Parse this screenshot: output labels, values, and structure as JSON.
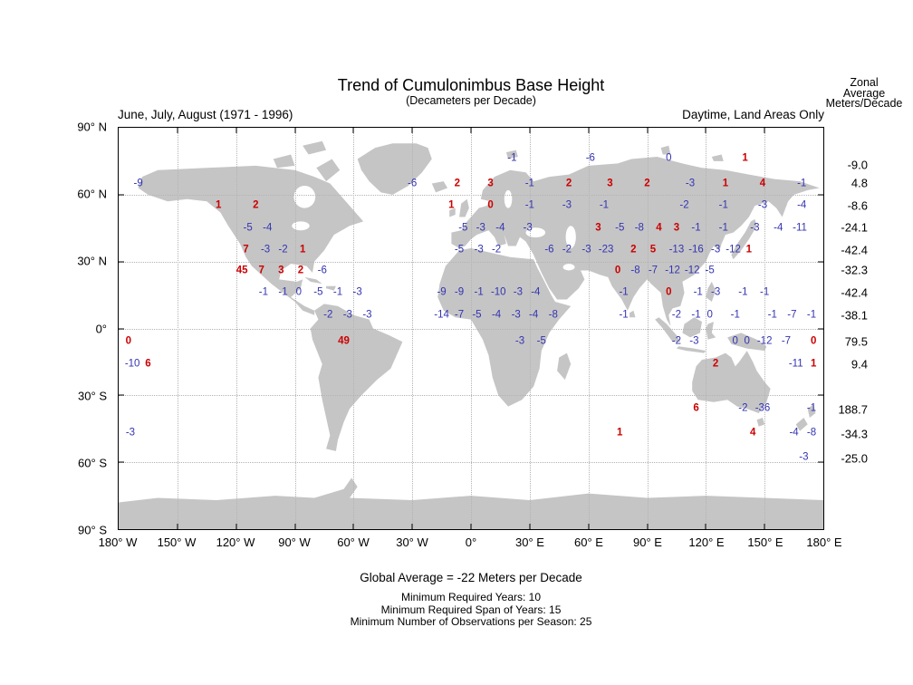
{
  "title": "Trend of Cumulonimbus Base Height",
  "subtitle": "(Decameters per Decade)",
  "left_caption": "June, July, August (1971 - 1996)",
  "right_caption": "Daytime, Land Areas Only",
  "zonal_header": [
    "Zonal",
    "Average",
    "Meters/Decade"
  ],
  "footer": {
    "global_average": "Global Average = -22 Meters per Decade",
    "notes": [
      "Minimum Required Years: 10",
      "Minimum Required Span of Years: 15",
      "Minimum Number of Observations per Season: 25"
    ]
  },
  "colors": {
    "positive": "#cc0000",
    "negative": "#3333b3",
    "land": "#c5c5c5",
    "grid": "#b3b3b3"
  },
  "axes": {
    "x_ticks": [
      {
        "lon": -180,
        "label": "180° W"
      },
      {
        "lon": -150,
        "label": "150° W"
      },
      {
        "lon": -120,
        "label": "120° W"
      },
      {
        "lon": -90,
        "label": "90° W"
      },
      {
        "lon": -60,
        "label": "60° W"
      },
      {
        "lon": -30,
        "label": "30° W"
      },
      {
        "lon": 0,
        "label": "0°"
      },
      {
        "lon": 30,
        "label": "30° E"
      },
      {
        "lon": 60,
        "label": "60° E"
      },
      {
        "lon": 90,
        "label": "90° E"
      },
      {
        "lon": 120,
        "label": "120° E"
      },
      {
        "lon": 150,
        "label": "150° E"
      },
      {
        "lon": 180,
        "label": "180° E"
      }
    ],
    "y_ticks": [
      {
        "lat": 90,
        "label": "90° N"
      },
      {
        "lat": 60,
        "label": "60° N"
      },
      {
        "lat": 30,
        "label": "30° N"
      },
      {
        "lat": 0,
        "label": "0°"
      },
      {
        "lat": -30,
        "label": "30° S"
      },
      {
        "lat": -60,
        "label": "60° S"
      },
      {
        "lat": -90,
        "label": "90° S"
      }
    ]
  },
  "chart_data": {
    "type": "scatter",
    "projection": "equirectangular",
    "title": "Trend of Cumulonimbus Base Height (Decameters per Decade)",
    "xlabel": "longitude",
    "ylabel": "latitude",
    "xlim": [
      -180,
      180
    ],
    "ylim": [
      -90,
      90
    ],
    "grid": true,
    "value_units": "decameters per decade",
    "positive_color_meaning": "positive trend (red)",
    "negative_color_meaning": "negative trend (blue)",
    "points": [
      {
        "lon": 21,
        "lat": 76,
        "v": "-1"
      },
      {
        "lon": 61,
        "lat": 76,
        "v": "-6"
      },
      {
        "lon": 101,
        "lat": 76,
        "v": "0",
        "c": "b"
      },
      {
        "lon": 140,
        "lat": 76,
        "v": "1"
      },
      {
        "lon": -170,
        "lat": 65,
        "v": "-9"
      },
      {
        "lon": -30,
        "lat": 65,
        "v": "-6"
      },
      {
        "lon": -7,
        "lat": 65,
        "v": "2"
      },
      {
        "lon": 10,
        "lat": 65,
        "v": "3"
      },
      {
        "lon": 30,
        "lat": 65,
        "v": "-1"
      },
      {
        "lon": 50,
        "lat": 65,
        "v": "2"
      },
      {
        "lon": 71,
        "lat": 65,
        "v": "3"
      },
      {
        "lon": 90,
        "lat": 65,
        "v": "2"
      },
      {
        "lon": 112,
        "lat": 65,
        "v": "-3"
      },
      {
        "lon": 130,
        "lat": 65,
        "v": "1"
      },
      {
        "lon": 149,
        "lat": 65,
        "v": "4"
      },
      {
        "lon": 169,
        "lat": 65,
        "v": "-1"
      },
      {
        "lon": -129,
        "lat": 55,
        "v": "1"
      },
      {
        "lon": -110,
        "lat": 55,
        "v": "2"
      },
      {
        "lon": -10,
        "lat": 55,
        "v": "1"
      },
      {
        "lon": 10,
        "lat": 55,
        "v": "0",
        "c": "r"
      },
      {
        "lon": 30,
        "lat": 55,
        "v": "-1"
      },
      {
        "lon": 49,
        "lat": 55,
        "v": "-3"
      },
      {
        "lon": 68,
        "lat": 55,
        "v": "-1"
      },
      {
        "lon": 109,
        "lat": 55,
        "v": "-2"
      },
      {
        "lon": 129,
        "lat": 55,
        "v": "-1"
      },
      {
        "lon": 149,
        "lat": 55,
        "v": "-3"
      },
      {
        "lon": 169,
        "lat": 55,
        "v": "-4"
      },
      {
        "lon": -114,
        "lat": 45,
        "v": "-5"
      },
      {
        "lon": -104,
        "lat": 45,
        "v": "-4"
      },
      {
        "lon": -4,
        "lat": 45,
        "v": "-5"
      },
      {
        "lon": 5,
        "lat": 45,
        "v": "-3"
      },
      {
        "lon": 15,
        "lat": 45,
        "v": "-4"
      },
      {
        "lon": 29,
        "lat": 45,
        "v": "-3"
      },
      {
        "lon": 65,
        "lat": 45,
        "v": "3"
      },
      {
        "lon": 76,
        "lat": 45,
        "v": "-5"
      },
      {
        "lon": 86,
        "lat": 45,
        "v": "-8"
      },
      {
        "lon": 96,
        "lat": 45,
        "v": "4"
      },
      {
        "lon": 105,
        "lat": 45,
        "v": "3"
      },
      {
        "lon": 115,
        "lat": 45,
        "v": "-1"
      },
      {
        "lon": 129,
        "lat": 45,
        "v": "-1"
      },
      {
        "lon": 145,
        "lat": 45,
        "v": "-3"
      },
      {
        "lon": 157,
        "lat": 45,
        "v": "-4"
      },
      {
        "lon": 168,
        "lat": 45,
        "v": "-11"
      },
      {
        "lon": -115,
        "lat": 35,
        "v": "7"
      },
      {
        "lon": -105,
        "lat": 35,
        "v": "-3"
      },
      {
        "lon": -96,
        "lat": 35,
        "v": "-2"
      },
      {
        "lon": -86,
        "lat": 35,
        "v": "1"
      },
      {
        "lon": -6,
        "lat": 35,
        "v": "-5"
      },
      {
        "lon": 4,
        "lat": 35,
        "v": "-3"
      },
      {
        "lon": 13,
        "lat": 35,
        "v": "-2"
      },
      {
        "lon": 40,
        "lat": 35,
        "v": "-6"
      },
      {
        "lon": 49,
        "lat": 35,
        "v": "-2"
      },
      {
        "lon": 59,
        "lat": 35,
        "v": "-3"
      },
      {
        "lon": 69,
        "lat": 35,
        "v": "-23"
      },
      {
        "lon": 83,
        "lat": 35,
        "v": "2"
      },
      {
        "lon": 93,
        "lat": 35,
        "v": "5"
      },
      {
        "lon": 105,
        "lat": 35,
        "v": "-13"
      },
      {
        "lon": 115,
        "lat": 35,
        "v": "-16"
      },
      {
        "lon": 125,
        "lat": 35,
        "v": "-3"
      },
      {
        "lon": 134,
        "lat": 35,
        "v": "-12"
      },
      {
        "lon": 142,
        "lat": 35,
        "v": "1"
      },
      {
        "lon": -117,
        "lat": 26,
        "v": "45"
      },
      {
        "lon": -107,
        "lat": 26,
        "v": "7"
      },
      {
        "lon": -97,
        "lat": 26,
        "v": "3"
      },
      {
        "lon": -87,
        "lat": 26,
        "v": "2"
      },
      {
        "lon": -76,
        "lat": 26,
        "v": "-6"
      },
      {
        "lon": 75,
        "lat": 26,
        "v": "0",
        "c": "r"
      },
      {
        "lon": 84,
        "lat": 26,
        "v": "-8"
      },
      {
        "lon": 93,
        "lat": 26,
        "v": "-7"
      },
      {
        "lon": 103,
        "lat": 26,
        "v": "-12"
      },
      {
        "lon": 113,
        "lat": 26,
        "v": "-12"
      },
      {
        "lon": 122,
        "lat": 26,
        "v": "-5"
      },
      {
        "lon": -106,
        "lat": 16,
        "v": "-1"
      },
      {
        "lon": -96,
        "lat": 16,
        "v": "-1"
      },
      {
        "lon": -88,
        "lat": 16,
        "v": "0",
        "c": "b"
      },
      {
        "lon": -78,
        "lat": 16,
        "v": "-5"
      },
      {
        "lon": -68,
        "lat": 16,
        "v": "-1"
      },
      {
        "lon": -58,
        "lat": 16,
        "v": "-3"
      },
      {
        "lon": -15,
        "lat": 16,
        "v": "-9"
      },
      {
        "lon": -6,
        "lat": 16,
        "v": "-9"
      },
      {
        "lon": 4,
        "lat": 16,
        "v": "-1"
      },
      {
        "lon": 14,
        "lat": 16,
        "v": "-10"
      },
      {
        "lon": 24,
        "lat": 16,
        "v": "-3"
      },
      {
        "lon": 33,
        "lat": 16,
        "v": "-4"
      },
      {
        "lon": 78,
        "lat": 16,
        "v": "-1"
      },
      {
        "lon": 101,
        "lat": 16,
        "v": "0",
        "c": "r"
      },
      {
        "lon": 116,
        "lat": 16,
        "v": "-1"
      },
      {
        "lon": 125,
        "lat": 16,
        "v": "-3"
      },
      {
        "lon": 139,
        "lat": 16,
        "v": "-1"
      },
      {
        "lon": 150,
        "lat": 16,
        "v": "-1"
      },
      {
        "lon": -73,
        "lat": 6,
        "v": "-2"
      },
      {
        "lon": -63,
        "lat": 6,
        "v": "-3"
      },
      {
        "lon": -53,
        "lat": 6,
        "v": "-3"
      },
      {
        "lon": -15,
        "lat": 6,
        "v": "-14"
      },
      {
        "lon": -6,
        "lat": 6,
        "v": "-7"
      },
      {
        "lon": 3,
        "lat": 6,
        "v": "-5"
      },
      {
        "lon": 13,
        "lat": 6,
        "v": "-4"
      },
      {
        "lon": 23,
        "lat": 6,
        "v": "-3"
      },
      {
        "lon": 32,
        "lat": 6,
        "v": "-4"
      },
      {
        "lon": 42,
        "lat": 6,
        "v": "-8"
      },
      {
        "lon": 78,
        "lat": 6,
        "v": "-1"
      },
      {
        "lon": 105,
        "lat": 6,
        "v": "-2"
      },
      {
        "lon": 115,
        "lat": 6,
        "v": "-1"
      },
      {
        "lon": 122,
        "lat": 6,
        "v": "0",
        "c": "b"
      },
      {
        "lon": 135,
        "lat": 6,
        "v": "-1"
      },
      {
        "lon": 154,
        "lat": 6,
        "v": "-1"
      },
      {
        "lon": 164,
        "lat": 6,
        "v": "-7"
      },
      {
        "lon": 174,
        "lat": 6,
        "v": "-1"
      },
      {
        "lon": -175,
        "lat": -6,
        "v": "0",
        "c": "r"
      },
      {
        "lon": -65,
        "lat": -6,
        "v": "49"
      },
      {
        "lon": 25,
        "lat": -6,
        "v": "-3"
      },
      {
        "lon": 36,
        "lat": -6,
        "v": "-5"
      },
      {
        "lon": 105,
        "lat": -6,
        "v": "-2"
      },
      {
        "lon": 114,
        "lat": -6,
        "v": "-3"
      },
      {
        "lon": 135,
        "lat": -6,
        "v": "0",
        "c": "b"
      },
      {
        "lon": 141,
        "lat": -6,
        "v": "0",
        "c": "b"
      },
      {
        "lon": 150,
        "lat": -6,
        "v": "-12"
      },
      {
        "lon": 161,
        "lat": -6,
        "v": "-7"
      },
      {
        "lon": 175,
        "lat": -6,
        "v": "0",
        "c": "r"
      },
      {
        "lon": -173,
        "lat": -16,
        "v": "-10"
      },
      {
        "lon": -165,
        "lat": -16,
        "v": "6"
      },
      {
        "lon": 125,
        "lat": -16,
        "v": "2"
      },
      {
        "lon": 166,
        "lat": -16,
        "v": "-11"
      },
      {
        "lon": 175,
        "lat": -16,
        "v": "1"
      },
      {
        "lon": 115,
        "lat": -36,
        "v": "6"
      },
      {
        "lon": 139,
        "lat": -36,
        "v": "-2"
      },
      {
        "lon": 149,
        "lat": -36,
        "v": "-36"
      },
      {
        "lon": 174,
        "lat": -36,
        "v": "-1"
      },
      {
        "lon": -174,
        "lat": -47,
        "v": "-3"
      },
      {
        "lon": 76,
        "lat": -47,
        "v": "1"
      },
      {
        "lon": 144,
        "lat": -47,
        "v": "4"
      },
      {
        "lon": 165,
        "lat": -47,
        "v": "-4"
      },
      {
        "lon": 174,
        "lat": -47,
        "v": "-8"
      },
      {
        "lon": 170,
        "lat": -58,
        "v": "-3"
      }
    ],
    "zonal_averages": [
      {
        "lat": 73,
        "value": "-9.0"
      },
      {
        "lat": 65,
        "value": "4.8"
      },
      {
        "lat": 55,
        "value": "-8.6"
      },
      {
        "lat": 45,
        "value": "-24.1"
      },
      {
        "lat": 35,
        "value": "-42.4"
      },
      {
        "lat": 26,
        "value": "-32.3"
      },
      {
        "lat": 16,
        "value": "-42.4"
      },
      {
        "lat": 6,
        "value": "-38.1"
      },
      {
        "lat": -6,
        "value": "79.5"
      },
      {
        "lat": -16,
        "value": "9.4"
      },
      {
        "lat": -36,
        "value": "188.7"
      },
      {
        "lat": -47,
        "value": "-34.3"
      },
      {
        "lat": -58,
        "value": "-25.0"
      }
    ]
  }
}
